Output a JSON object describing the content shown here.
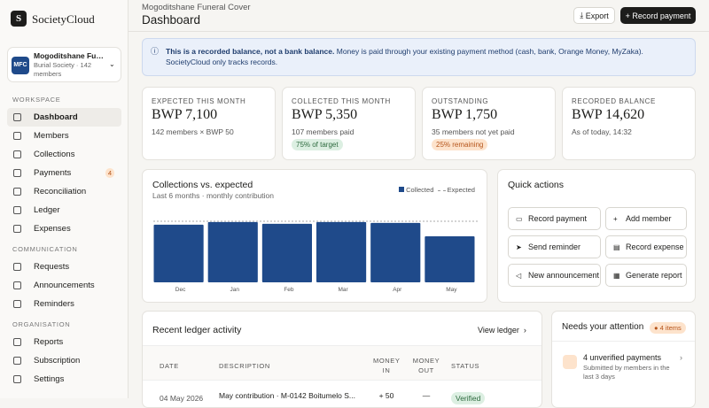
{
  "brand": "SocietyCloud",
  "brand_initial": "S",
  "org": {
    "initials": "MFC",
    "name": "Mogoditshane Fu…",
    "sub": "Burial Society · 142 members"
  },
  "nav": [
    {
      "heading": "WORKSPACE",
      "items": [
        {
          "label": "Dashboard"
        },
        {
          "label": "Members"
        },
        {
          "label": "Collections"
        },
        {
          "label": "Payments",
          "badge": 4
        },
        {
          "label": "Reconciliation"
        },
        {
          "label": "Ledger"
        },
        {
          "label": "Expenses"
        }
      ]
    },
    {
      "heading": "COMMUNICATION",
      "items": [
        {
          "label": "Requests"
        },
        {
          "label": "Announcements"
        },
        {
          "label": "Reminders"
        }
      ]
    },
    {
      "heading": "ORGANISATION",
      "items": [
        {
          "label": "Reports"
        },
        {
          "label": "Subscription"
        },
        {
          "label": "Settings"
        }
      ]
    }
  ],
  "header": {
    "breadcrumb": "Mogoditshane Funeral Cover",
    "title": "Dashboard",
    "actions": [
      "Export",
      "Record payment"
    ]
  },
  "banner": {
    "strong": "This is a recorded balance, not a bank balance.",
    "text": " Money is paid through your existing payment method (cash, bank, Orange Money, MyZaka). SocietyCloud only tracks records."
  },
  "stats": [
    {
      "label": "EXPECTED THIS MONTH",
      "value": "BWP 7,100",
      "sub": "142 members × BWP 50"
    },
    {
      "label": "COLLECTED THIS MONTH",
      "value": "BWP 5,350",
      "sub": "107 members paid",
      "pill": "75% of target"
    },
    {
      "label": "OUTSTANDING",
      "value": "BWP 1,750",
      "sub": "35 members not yet paid",
      "pill": "25% remaining"
    },
    {
      "label": "RECORDED BALANCE",
      "value": "BWP 14,620",
      "sub": "As of today, 14:32"
    }
  ],
  "chart": {
    "type": "bar",
    "title": "Collections vs. expected",
    "subtitle": "Last 6 months · monthly contribution",
    "legend": [
      "Collected",
      "Expected"
    ],
    "categories": [
      "Dec",
      "Jan",
      "Feb",
      "Mar",
      "Apr",
      "May"
    ],
    "values": [
      6700,
      7000,
      6800,
      7000,
      6900,
      5350
    ],
    "expected": 7100,
    "ylim": [
      0,
      7300
    ],
    "color": "#1f4a8a"
  },
  "quick_actions": {
    "title": "Quick actions",
    "actions": [
      "Record payment",
      "Add member",
      "Send reminder",
      "Record expense",
      "New announcement",
      "Generate report"
    ]
  },
  "ledger": {
    "title": "Recent ledger activity",
    "link": "View ledger",
    "columns": [
      "DATE",
      "DESCRIPTION",
      "MONEY IN",
      "MONEY OUT",
      "STATUS"
    ],
    "rows": [
      [
        "04 May 2026",
        "May contribution · M-0142 Boitumelo S...",
        "+ 50",
        "—",
        "Verified"
      ]
    ]
  },
  "attention": {
    "title": "Needs your attention",
    "badge": "4 items",
    "items": [
      {
        "title": "4 unverified payments",
        "sub": "Submitted by members in the last 3 days"
      }
    ]
  }
}
